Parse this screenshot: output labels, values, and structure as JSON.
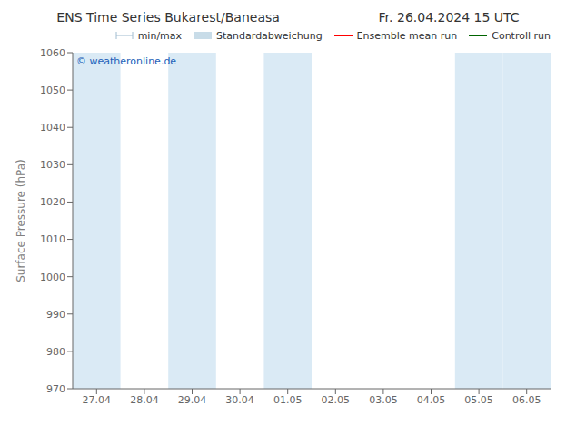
{
  "chart_data": {
    "type": "line",
    "title": "ENS Time Series Bukarest/Baneasa",
    "subtitle": "Fr. 26.04.2024 15 UTC",
    "y_label": "Surface Pressure (hPa)",
    "categories": [
      "27.04",
      "28.04",
      "29.04",
      "30.04",
      "01.05",
      "02.05",
      "03.05",
      "04.05",
      "05.05",
      "06.05"
    ],
    "series": [
      {
        "name": "min/max",
        "color": "#a0bcd0",
        "type": "errorbar",
        "values": [
          null,
          null,
          null,
          null,
          null,
          null,
          null,
          null,
          null,
          null
        ]
      },
      {
        "name": "Standardabweichung",
        "color": "#c8dce8",
        "type": "band",
        "values": [
          null,
          null,
          null,
          null,
          null,
          null,
          null,
          null,
          null,
          null
        ]
      },
      {
        "name": "Ensemble mean run",
        "color": "red",
        "type": "line",
        "values": [
          null,
          null,
          null,
          null,
          null,
          null,
          null,
          null,
          null,
          null
        ]
      },
      {
        "name": "Controll run",
        "color": "darkgreen",
        "type": "line",
        "values": [
          null,
          null,
          null,
          null,
          null,
          null,
          null,
          null,
          null,
          null
        ]
      }
    ],
    "shaded": {
      "categories": [
        "27.04",
        "29.04",
        "01.05",
        "05.05",
        "06.05"
      ],
      "color": "#daeaf5"
    },
    "annotations": [
      {
        "text": "© weatheronline.de",
        "color": "#1a5eb8"
      }
    ],
    "ylim": [
      970,
      1060
    ],
    "yticks": [
      970,
      980,
      990,
      1000,
      1010,
      1020,
      1030,
      1040,
      1050,
      1060
    ],
    "grid": false,
    "legend": "upper right"
  }
}
